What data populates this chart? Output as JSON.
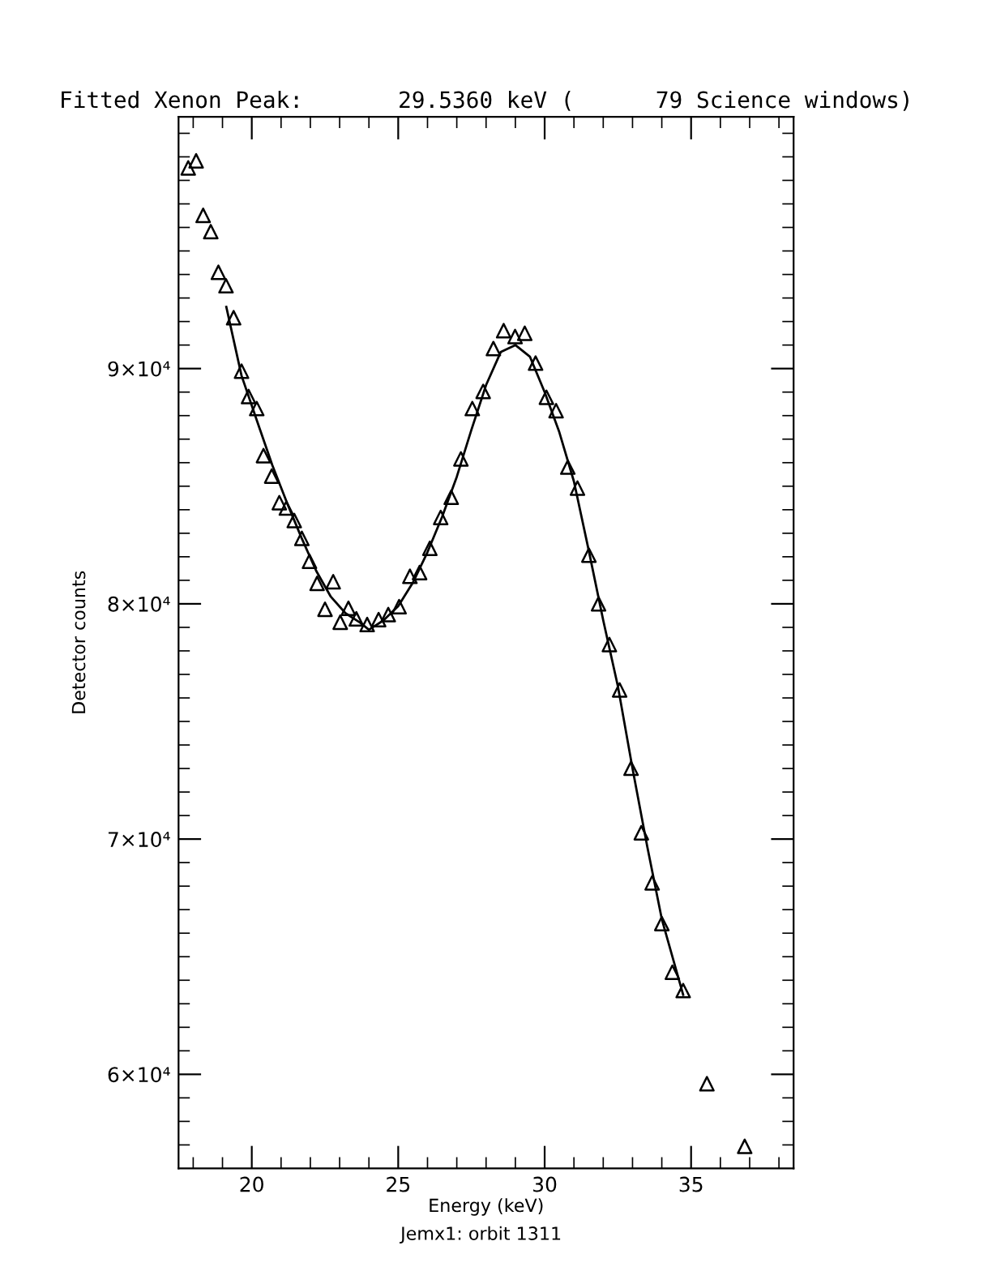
{
  "chart_data": {
    "type": "scatter",
    "title": "Fitted Xenon Peak:       29.5360 keV (      79 Science windows)",
    "xlabel": "Energy (keV)",
    "ylabel": "Detector counts",
    "annotations": [
      "Jemx1: orbit 1311"
    ],
    "xlim": [
      17.5,
      38.5
    ],
    "ylim": [
      56000,
      100700
    ],
    "xticks": [
      {
        "value": 18,
        "label": null
      },
      {
        "value": 19,
        "label": null
      },
      20,
      {
        "value": 21,
        "label": null
      },
      {
        "value": 22,
        "label": null
      },
      {
        "value": 23,
        "label": null
      },
      {
        "value": 24,
        "label": null
      },
      25,
      {
        "value": 26,
        "label": null
      },
      {
        "value": 27,
        "label": null
      },
      {
        "value": 28,
        "label": null
      },
      {
        "value": 29,
        "label": null
      },
      30,
      {
        "value": 31,
        "label": null
      },
      {
        "value": 32,
        "label": null
      },
      {
        "value": 33,
        "label": null
      },
      {
        "value": 34,
        "label": null
      },
      35,
      {
        "value": 36,
        "label": null
      },
      {
        "value": 37,
        "label": null
      },
      {
        "value": 38,
        "label": null
      }
    ],
    "yticks": [
      {
        "value": 57000,
        "label": null
      },
      {
        "value": 58000,
        "label": null
      },
      {
        "value": 59000,
        "label": null
      },
      {
        "value": 60000,
        "label": "6×10⁴"
      },
      {
        "value": 61000,
        "label": null
      },
      {
        "value": 62000,
        "label": null
      },
      {
        "value": 63000,
        "label": null
      },
      {
        "value": 64000,
        "label": null
      },
      {
        "value": 65000,
        "label": null
      },
      {
        "value": 66000,
        "label": null
      },
      {
        "value": 67000,
        "label": null
      },
      {
        "value": 68000,
        "label": null
      },
      {
        "value": 69000,
        "label": null
      },
      {
        "value": 70000,
        "label": "7×10⁴"
      },
      {
        "value": 71000,
        "label": null
      },
      {
        "value": 72000,
        "label": null
      },
      {
        "value": 73000,
        "label": null
      },
      {
        "value": 74000,
        "label": null
      },
      {
        "value": 75000,
        "label": null
      },
      {
        "value": 76000,
        "label": null
      },
      {
        "value": 77000,
        "label": null
      },
      {
        "value": 78000,
        "label": null
      },
      {
        "value": 79000,
        "label": null
      },
      {
        "value": 80000,
        "label": "8×10⁴"
      },
      {
        "value": 81000,
        "label": null
      },
      {
        "value": 82000,
        "label": null
      },
      {
        "value": 83000,
        "label": null
      },
      {
        "value": 84000,
        "label": null
      },
      {
        "value": 85000,
        "label": null
      },
      {
        "value": 86000,
        "label": null
      },
      {
        "value": 87000,
        "label": null
      },
      {
        "value": 88000,
        "label": null
      },
      {
        "value": 89000,
        "label": null
      },
      {
        "value": 90000,
        "label": "9×10⁴"
      },
      {
        "value": 91000,
        "label": null
      },
      {
        "value": 92000,
        "label": null
      },
      {
        "value": 93000,
        "label": null
      },
      {
        "value": 94000,
        "label": null
      },
      {
        "value": 95000,
        "label": null
      },
      {
        "value": 96000,
        "label": null
      },
      {
        "value": 97000,
        "label": null
      },
      {
        "value": 98000,
        "label": null
      },
      {
        "value": 99000,
        "label": null
      },
      {
        "value": 100000,
        "label": null
      }
    ],
    "grid": false,
    "legend": false,
    "series": [
      {
        "color": "#000000",
        "marker": "triangle",
        "x": [
          17.83,
          18.1,
          18.34,
          18.6,
          18.86,
          19.12,
          19.38,
          19.65,
          19.89,
          20.17,
          20.4,
          20.68,
          20.94,
          21.18,
          21.45,
          21.71,
          21.97,
          22.23,
          22.5,
          22.78,
          23.02,
          23.3,
          23.57,
          23.94,
          24.33,
          24.66,
          25.03,
          25.4,
          25.73,
          26.08,
          26.45,
          26.81,
          27.14,
          27.53,
          27.9,
          28.25,
          28.6,
          28.99,
          29.32,
          29.69,
          30.06,
          30.39,
          30.79,
          31.12,
          31.51,
          31.84,
          32.21,
          32.56,
          32.95,
          33.3,
          33.67,
          34.0,
          34.36,
          34.73,
          35.54,
          36.83
        ],
        "values": [
          98530,
          98830,
          96510,
          95820,
          94090,
          93520,
          92160,
          89890,
          88810,
          88300,
          86300,
          85430,
          84300,
          84070,
          83540,
          82780,
          81810,
          80870,
          79770,
          80940,
          79220,
          79810,
          79360,
          79120,
          79330,
          79540,
          79880,
          81170,
          81330,
          82360,
          83670,
          84530,
          86160,
          88300,
          89030,
          90850,
          91610,
          91360,
          91500,
          90230,
          88780,
          88210,
          85810,
          84920,
          82070,
          80000,
          78270,
          76340,
          73010,
          70270,
          68140,
          66410,
          64340,
          63560,
          59600,
          56940
        ]
      },
      {
        "type": "line",
        "color": "#000000",
        "marker": "none",
        "line_style": "solid",
        "x": [
          19.13,
          19.65,
          20.2,
          20.7,
          21.2,
          21.7,
          22.2,
          22.7,
          23.2,
          23.7,
          24.0,
          24.5,
          25.0,
          25.5,
          26.0,
          26.5,
          27.0,
          27.5,
          28.0,
          28.5,
          29.0,
          29.5,
          30.0,
          30.5,
          31.0,
          31.5,
          32.0,
          32.5,
          33.0,
          33.5,
          34.0,
          34.73
        ],
        "values": [
          92620,
          89700,
          87700,
          85900,
          84300,
          82800,
          81400,
          80300,
          79600,
          79200,
          78900,
          79300,
          79900,
          80900,
          82200,
          83700,
          85400,
          87400,
          89300,
          90700,
          91000,
          90500,
          89000,
          87300,
          85200,
          82300,
          79300,
          76500,
          73000,
          69700,
          66600,
          63380
        ]
      }
    ]
  }
}
